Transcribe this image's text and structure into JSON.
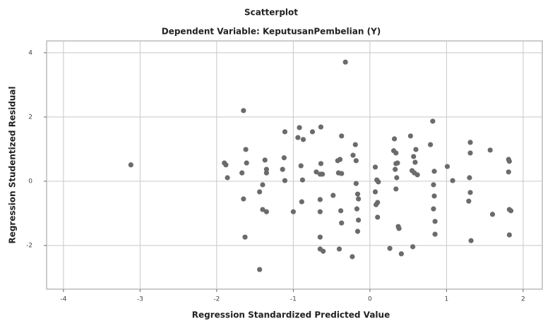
{
  "chart_data": {
    "type": "scatter",
    "title": "Scatterplot",
    "subtitle": "Dependent Variable: KeputusanPembelian (Y)",
    "x_label": "Regression Standardized Predicted Value",
    "y_label": "Regression Studentized Residual",
    "color": "#6b6b6b",
    "grid": true,
    "xlim": [
      -4.22,
      2.25
    ],
    "ylim": [
      -3.36,
      4.37
    ],
    "xticks": [
      -4,
      -3,
      -2,
      -1,
      0,
      1,
      2
    ],
    "yticks": [
      -2,
      0,
      2,
      4
    ],
    "x": [
      -3.12,
      -0.32,
      -1.65,
      -1.62,
      -1.9,
      -1.88,
      -1.86,
      -1.61,
      -1.67,
      -1.65,
      -1.63,
      -1.44,
      -1.4,
      -1.35,
      -1.37,
      -1.35,
      -1.44,
      -1.4,
      -1.35,
      -1.11,
      -1.12,
      -1.14,
      -1.11,
      -1.0,
      -0.94,
      -0.92,
      -0.87,
      -0.9,
      -0.88,
      -0.89,
      -0.75,
      -0.64,
      -0.7,
      -0.65,
      -0.64,
      -0.62,
      -0.65,
      -0.65,
      -0.65,
      -0.65,
      -0.61,
      -0.48,
      -0.42,
      -0.41,
      -0.37,
      -0.39,
      -0.37,
      -0.38,
      -0.37,
      -0.4,
      -0.23,
      -0.22,
      -0.19,
      -0.18,
      -0.18,
      -0.16,
      -0.15,
      -0.17,
      -0.15,
      -0.16,
      0.07,
      0.09,
      0.11,
      0.07,
      0.1,
      0.08,
      0.1,
      0.31,
      0.34,
      0.32,
      0.34,
      0.33,
      0.34,
      0.35,
      0.36,
      0.37,
      0.38,
      0.26,
      0.41,
      0.53,
      0.57,
      0.55,
      0.58,
      0.56,
      0.6,
      0.59,
      0.62,
      0.79,
      0.82,
      0.84,
      0.83,
      0.84,
      0.83,
      0.85,
      0.85,
      1.01,
      1.08,
      1.31,
      1.31,
      1.3,
      1.31,
      1.29,
      1.32,
      1.57,
      1.6,
      1.81,
      1.82,
      1.81,
      1.82,
      1.84,
      1.82
    ],
    "values": [
      0.51,
      3.71,
      2.2,
      0.99,
      0.57,
      0.51,
      0.11,
      0.57,
      0.26,
      -0.55,
      -1.74,
      -2.75,
      -0.88,
      -0.95,
      0.66,
      0.26,
      -0.33,
      -0.11,
      0.37,
      1.54,
      0.73,
      0.37,
      0.02,
      -0.95,
      1.36,
      1.67,
      1.3,
      0.48,
      0.04,
      -0.64,
      1.54,
      1.69,
      0.29,
      0.22,
      0.55,
      0.22,
      -0.57,
      -0.95,
      -1.74,
      -2.11,
      -2.18,
      -0.44,
      0.64,
      0.26,
      1.41,
      0.68,
      0.24,
      -0.92,
      -1.3,
      -2.11,
      -2.35,
      0.81,
      1.14,
      0.64,
      -0.07,
      -0.4,
      -0.55,
      -0.86,
      -1.21,
      -1.56,
      0.44,
      0.04,
      -0.02,
      -0.33,
      -0.66,
      -0.73,
      -1.12,
      0.95,
      0.88,
      1.32,
      0.55,
      0.37,
      -0.24,
      0.11,
      0.57,
      -1.41,
      -1.47,
      -2.09,
      -2.26,
      1.41,
      0.77,
      0.33,
      0.26,
      -2.04,
      0.99,
      0.59,
      0.2,
      1.14,
      1.87,
      0.31,
      -0.11,
      -0.46,
      -0.86,
      -1.25,
      -1.65,
      0.46,
      0.02,
      1.21,
      0.88,
      0.11,
      -0.35,
      -0.62,
      -1.85,
      0.97,
      -1.03,
      0.68,
      0.62,
      0.29,
      -0.88,
      -0.92,
      -1.67
    ]
  }
}
